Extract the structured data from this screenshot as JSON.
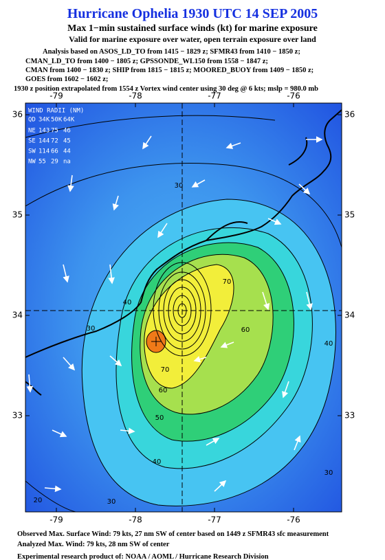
{
  "header": {
    "title": "Hurricane Ophelia 1930 UTC 14 SEP 2005",
    "subtitle": "Max 1−min sustained surface winds (kt) for marine exposure",
    "validity": "Valid for marine exposure over water, open terrain exposure over land",
    "analysis_lines": [
      "Analysis based on  ASOS_LD_TO from 1415 − 1829 z;  SFMR43 from 1410 − 1850 z;",
      "CMAN_LD_TO from 1400 − 1805 z;  GPSSONDE_WL150 from 1558 − 1847 z;",
      "CMAN from 1400 − 1830 z;  SHIP from 1815 − 1815 z;  MOORED_BUOY from 1409 − 1850 z;",
      "GOES from 1602 − 1602 z;"
    ],
    "position_note": "1930 z position extrapolated from 1554 z Vortex wind center using 30 deg @ 6 kts; mslp = 980.0 mb"
  },
  "map": {
    "lon_ticks": [
      -79,
      -78,
      -77,
      -76
    ],
    "lat_ticks": [
      36,
      35,
      34,
      33
    ],
    "wind_radii": {
      "title": "WIND RADII (NM)",
      "header": [
        "QD",
        "34K",
        "50K",
        "64K"
      ],
      "rows": [
        [
          "NE",
          143,
          75,
          46
        ],
        [
          "SE",
          144,
          72,
          45
        ],
        [
          "SW",
          114,
          66,
          44
        ],
        [
          "NW",
          55,
          29,
          "na"
        ]
      ]
    },
    "contour_labels": [
      30,
      40,
      40,
      30,
      40,
      30,
      20,
      50,
      60,
      70,
      60,
      70,
      30
    ]
  },
  "footer": {
    "lines": [
      "Observed Max. Surface Wind: 79 kts, 27 nm SW of center based on 1449 z SFMR43 sfc measurement",
      "Analyzed Max. Wind: 79 kts, 28 nm SW of center",
      "Experimental research product of:  NOAA / AOML / Hurricane Research Division"
    ]
  }
}
